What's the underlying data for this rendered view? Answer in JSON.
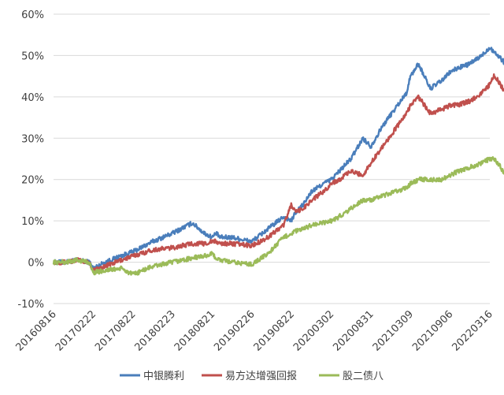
{
  "chart_data": {
    "type": "line",
    "title": "",
    "xlabel": "",
    "ylabel": "",
    "ylim": [
      -10,
      60
    ],
    "y_ticks": [
      -10,
      0,
      10,
      20,
      30,
      40,
      50,
      60
    ],
    "y_tick_labels": [
      "-10%",
      "0%",
      "10%",
      "20%",
      "30%",
      "40%",
      "50%",
      "60%"
    ],
    "x_ticks": [
      "20160816",
      "20170222",
      "20170822",
      "20180223",
      "20180821",
      "20190226",
      "20190822",
      "20200302",
      "20200831",
      "20210309",
      "20210906",
      "20220316"
    ],
    "grid": true,
    "legend_position": "bottom",
    "series": [
      {
        "name": "中银腾利",
        "color": "#4a7ebb",
        "x": [
          0,
          0.3,
          0.6,
          0.9,
          1.0,
          1.3,
          1.7,
          2.0,
          2.5,
          3.0,
          3.5,
          3.8,
          4.0,
          4.1,
          4.2,
          4.5,
          5.0,
          5.4,
          5.8,
          6.0,
          6.1,
          6.3,
          6.5,
          6.8,
          7.0,
          7.2,
          7.5,
          7.8,
          8.0,
          8.3,
          8.6,
          8.9,
          9.0,
          9.2,
          9.5,
          9.8,
          10.0,
          10.2,
          10.5,
          10.8,
          11.0,
          11.1,
          11.2,
          11.4,
          11.5
        ],
        "values": [
          0,
          0,
          0.5,
          0,
          -1.5,
          0,
          1.5,
          2.5,
          5,
          7,
          9.5,
          7,
          6,
          7,
          6,
          6,
          5,
          8,
          11,
          10,
          12,
          14,
          17,
          19,
          20,
          22,
          25,
          30,
          28,
          33,
          37,
          41,
          45,
          48,
          42,
          44,
          46,
          47,
          48,
          50,
          52,
          51,
          50,
          48,
          49
        ]
      },
      {
        "name": "易方达增强回报",
        "color": "#c0504d",
        "x": [
          0,
          0.3,
          0.6,
          0.9,
          1.0,
          1.3,
          1.7,
          2.0,
          2.5,
          3.0,
          3.5,
          3.8,
          4.0,
          4.1,
          4.2,
          4.5,
          5.0,
          5.4,
          5.8,
          6.0,
          6.1,
          6.3,
          6.5,
          6.8,
          7.0,
          7.2,
          7.5,
          7.8,
          8.0,
          8.3,
          8.6,
          8.9,
          9.0,
          9.2,
          9.5,
          9.8,
          10.0,
          10.2,
          10.5,
          10.8,
          11.0,
          11.1,
          11.2,
          11.4,
          11.5
        ],
        "values": [
          0,
          0,
          0.5,
          0,
          -2,
          -1,
          0.5,
          1.5,
          3,
          3.5,
          4.5,
          4.5,
          5,
          5,
          4.5,
          4.5,
          4,
          6,
          9,
          14,
          12,
          13,
          15,
          17,
          19,
          20,
          22,
          21,
          24,
          28,
          32,
          36,
          38,
          40,
          36,
          37,
          38,
          38,
          39,
          41,
          43,
          45,
          44,
          41,
          42
        ]
      },
      {
        "name": "股二债八",
        "color": "#9bbb59",
        "x": [
          0,
          0.3,
          0.6,
          0.9,
          1.0,
          1.3,
          1.7,
          2.0,
          2.5,
          3.0,
          3.5,
          3.8,
          4.0,
          4.1,
          4.2,
          4.5,
          5.0,
          5.4,
          5.8,
          6.0,
          6.1,
          6.3,
          6.5,
          6.8,
          7.0,
          7.2,
          7.5,
          7.8,
          8.0,
          8.3,
          8.6,
          8.9,
          9.0,
          9.2,
          9.5,
          9.8,
          10.0,
          10.2,
          10.5,
          10.8,
          11.0,
          11.1,
          11.2,
          11.4,
          11.5
        ],
        "values": [
          0,
          0,
          0.5,
          0,
          -2.5,
          -2,
          -1.5,
          -3,
          -1,
          0,
          1,
          1.5,
          2,
          1,
          0.5,
          0,
          -0.5,
          2,
          6,
          7,
          7.5,
          8,
          9,
          9.5,
          10,
          11,
          13,
          15,
          15,
          16,
          17,
          18,
          19,
          20,
          20,
          20,
          21,
          22,
          23,
          24,
          25,
          25,
          24,
          21,
          22
        ]
      }
    ]
  }
}
